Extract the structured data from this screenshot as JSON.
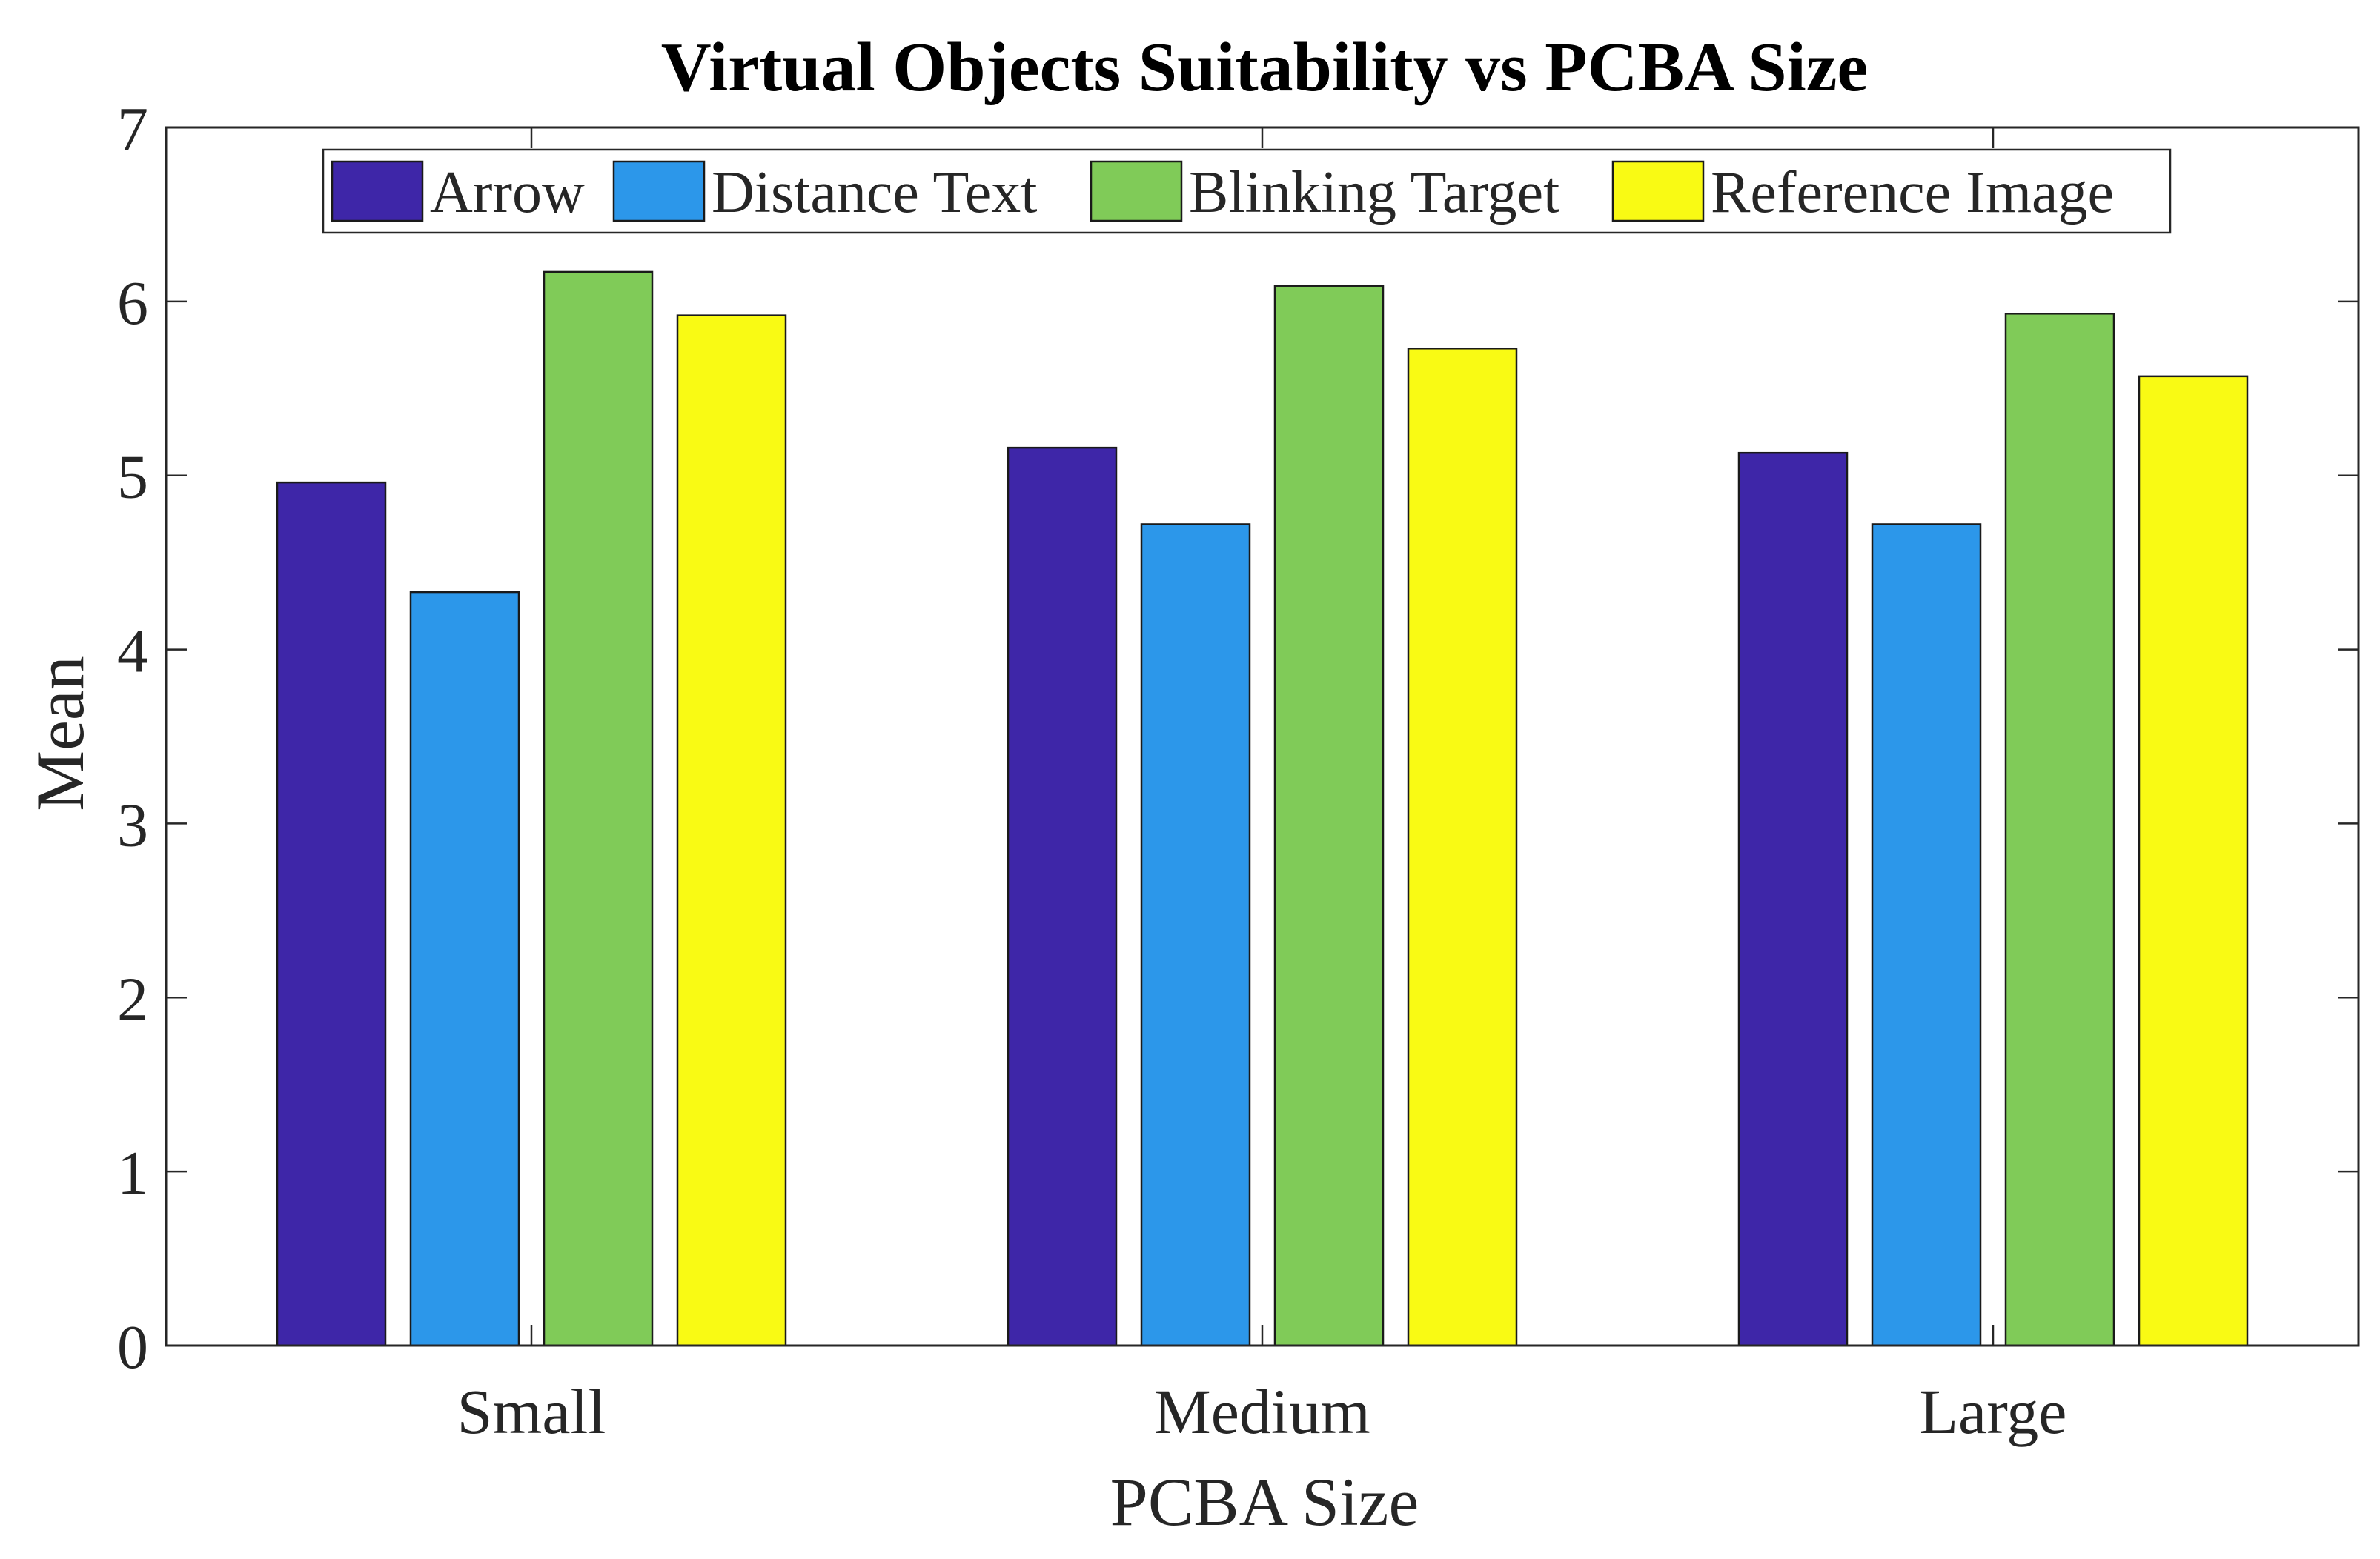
{
  "chart_data": {
    "type": "bar",
    "title": "Virtual Objects Suitability vs PCBA Size",
    "xlabel": "PCBA Size",
    "ylabel": "Mean",
    "ylim": [
      0,
      7
    ],
    "yticks": [
      0,
      1,
      2,
      3,
      4,
      5,
      6,
      7
    ],
    "categories": [
      "Small",
      "Medium",
      "Large"
    ],
    "series": [
      {
        "name": "Arrow",
        "color": "#3E26A8",
        "values": [
          4.96,
          5.16,
          5.13
        ]
      },
      {
        "name": "Distance Text",
        "color": "#2C97EA",
        "values": [
          4.33,
          4.72,
          4.72
        ]
      },
      {
        "name": "Blinking Target",
        "color": "#80CB58",
        "values": [
          6.17,
          6.09,
          5.93
        ]
      },
      {
        "name": "Reference Image",
        "color": "#F9FA14",
        "values": [
          5.92,
          5.73,
          5.57
        ]
      }
    ],
    "legend_position": "top"
  }
}
